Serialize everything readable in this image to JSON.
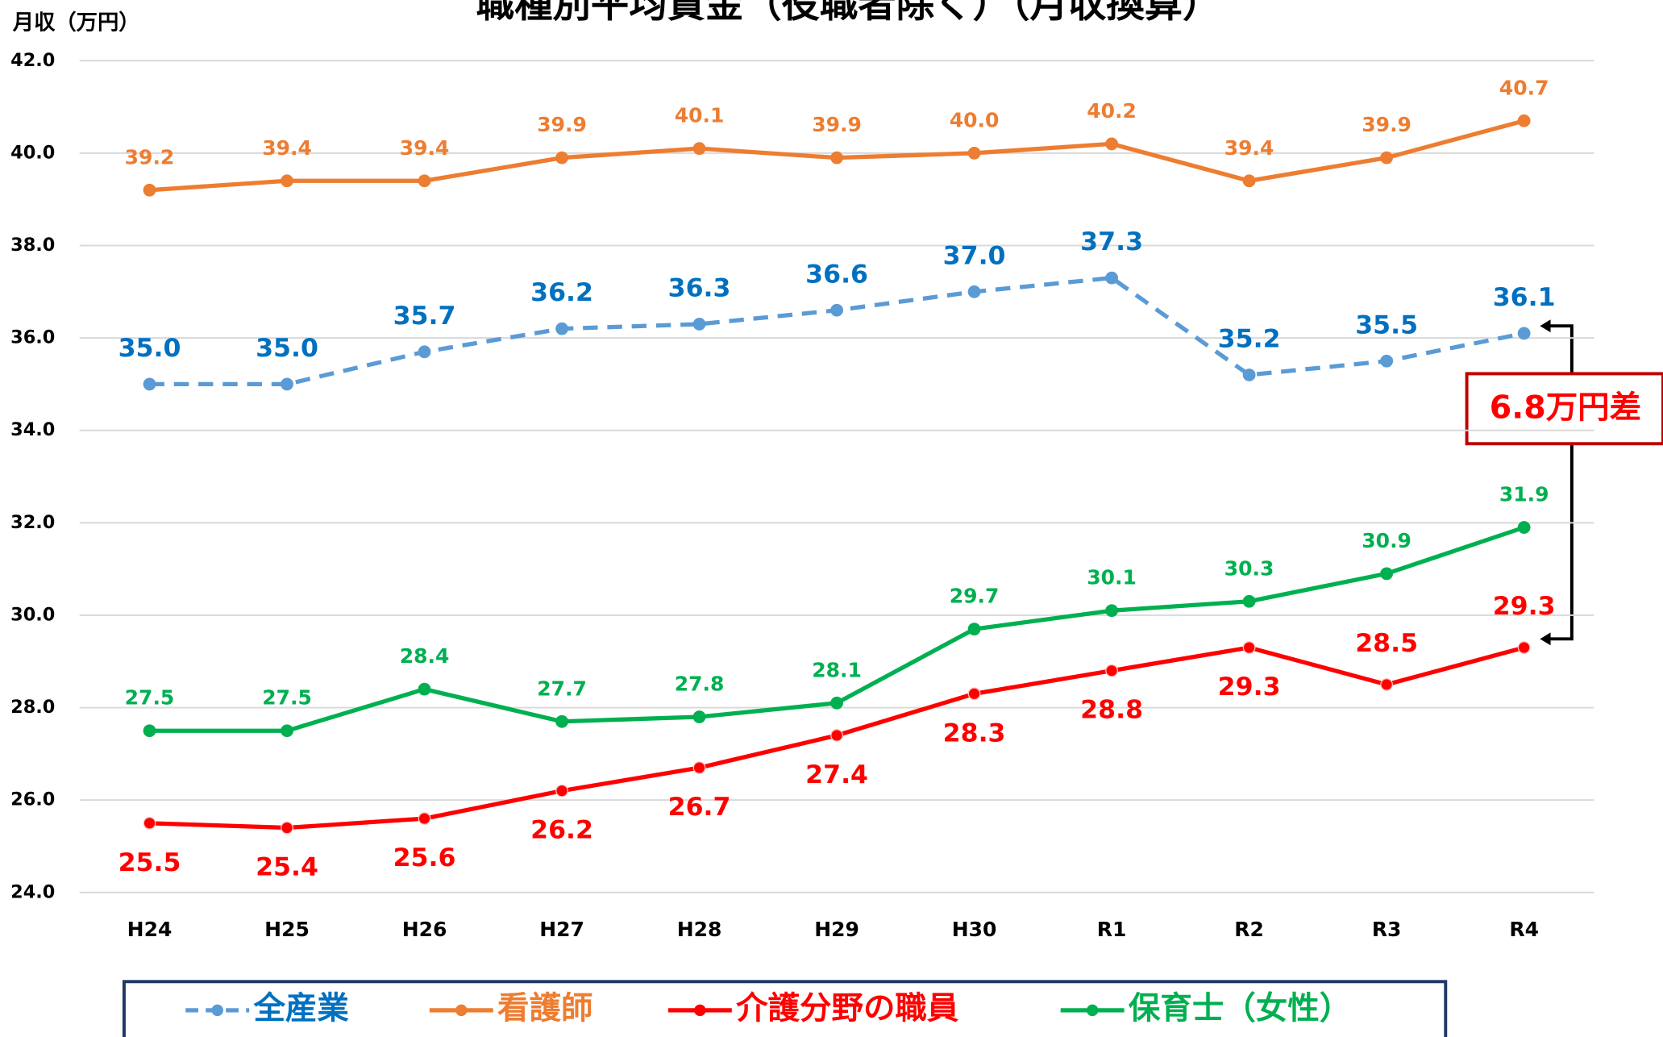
{
  "chart_data": {
    "type": "line",
    "title": "職種別平均賃金（役職者除く）（月収換算）",
    "y_label": "月収（万円）",
    "annotation": "6.8万円差",
    "categories": [
      "H24",
      "H25",
      "H26",
      "H27",
      "H28",
      "H29",
      "H30",
      "R1",
      "R2",
      "R3",
      "R4"
    ],
    "ylim": [
      24,
      42
    ],
    "yticks": [
      {
        "value": 24,
        "label": "24.0"
      },
      {
        "value": 26,
        "label": "26.0"
      },
      {
        "value": 28,
        "label": "28.0"
      },
      {
        "value": 30,
        "label": "30.0"
      },
      {
        "value": 32,
        "label": "32.0"
      },
      {
        "value": 34,
        "label": "34.0"
      },
      {
        "value": 36,
        "label": "36.0"
      },
      {
        "value": 38,
        "label": "38.0"
      },
      {
        "value": 40,
        "label": "40.0"
      },
      {
        "value": 42,
        "label": "42.0"
      }
    ],
    "grid": true,
    "series": [
      {
        "name": "全産業",
        "color": "#5b9bd5",
        "label_color": "#0070c0",
        "dashed": true,
        "values": [
          35.0,
          35.0,
          35.7,
          36.2,
          36.3,
          36.6,
          37.0,
          37.3,
          35.2,
          35.5,
          36.1
        ],
        "value_labels": [
          "35.0",
          "35.0",
          "35.7",
          "36.2",
          "36.3",
          "36.6",
          "37.0",
          "37.3",
          "35.2",
          "35.5",
          "36.1"
        ]
      },
      {
        "name": "看護師",
        "color": "#ed7d31",
        "label_color": "#ed7d31",
        "dashed": false,
        "values": [
          39.2,
          39.4,
          39.4,
          39.9,
          40.1,
          39.9,
          40.0,
          40.2,
          39.4,
          39.9,
          40.7
        ],
        "value_labels": [
          "39.2",
          "39.4",
          "39.4",
          "39.9",
          "40.1",
          "39.9",
          "40.0",
          "40.2",
          "39.4",
          "39.9",
          "40.7"
        ]
      },
      {
        "name": "介護分野の職員",
        "color": "#ff0000",
        "label_color": "#ff0000",
        "dashed": false,
        "values": [
          25.5,
          25.4,
          25.6,
          26.2,
          26.7,
          27.4,
          28.3,
          28.8,
          29.3,
          28.5,
          29.3
        ],
        "value_labels": [
          "25.5",
          "25.4",
          "25.6",
          "26.2",
          "26.7",
          "27.4",
          "28.3",
          "28.8",
          "29.3",
          "28.5",
          "29.3"
        ]
      },
      {
        "name": "保育士（女性）",
        "color": "#00b050",
        "label_color": "#00b050",
        "dashed": false,
        "values": [
          27.5,
          27.5,
          28.4,
          27.7,
          27.8,
          28.1,
          29.7,
          30.1,
          30.3,
          30.9,
          31.9
        ],
        "value_labels": [
          "27.5",
          "27.5",
          "28.4",
          "27.7",
          "27.8",
          "28.1",
          "29.7",
          "30.1",
          "30.3",
          "30.9",
          "31.9"
        ]
      }
    ]
  }
}
